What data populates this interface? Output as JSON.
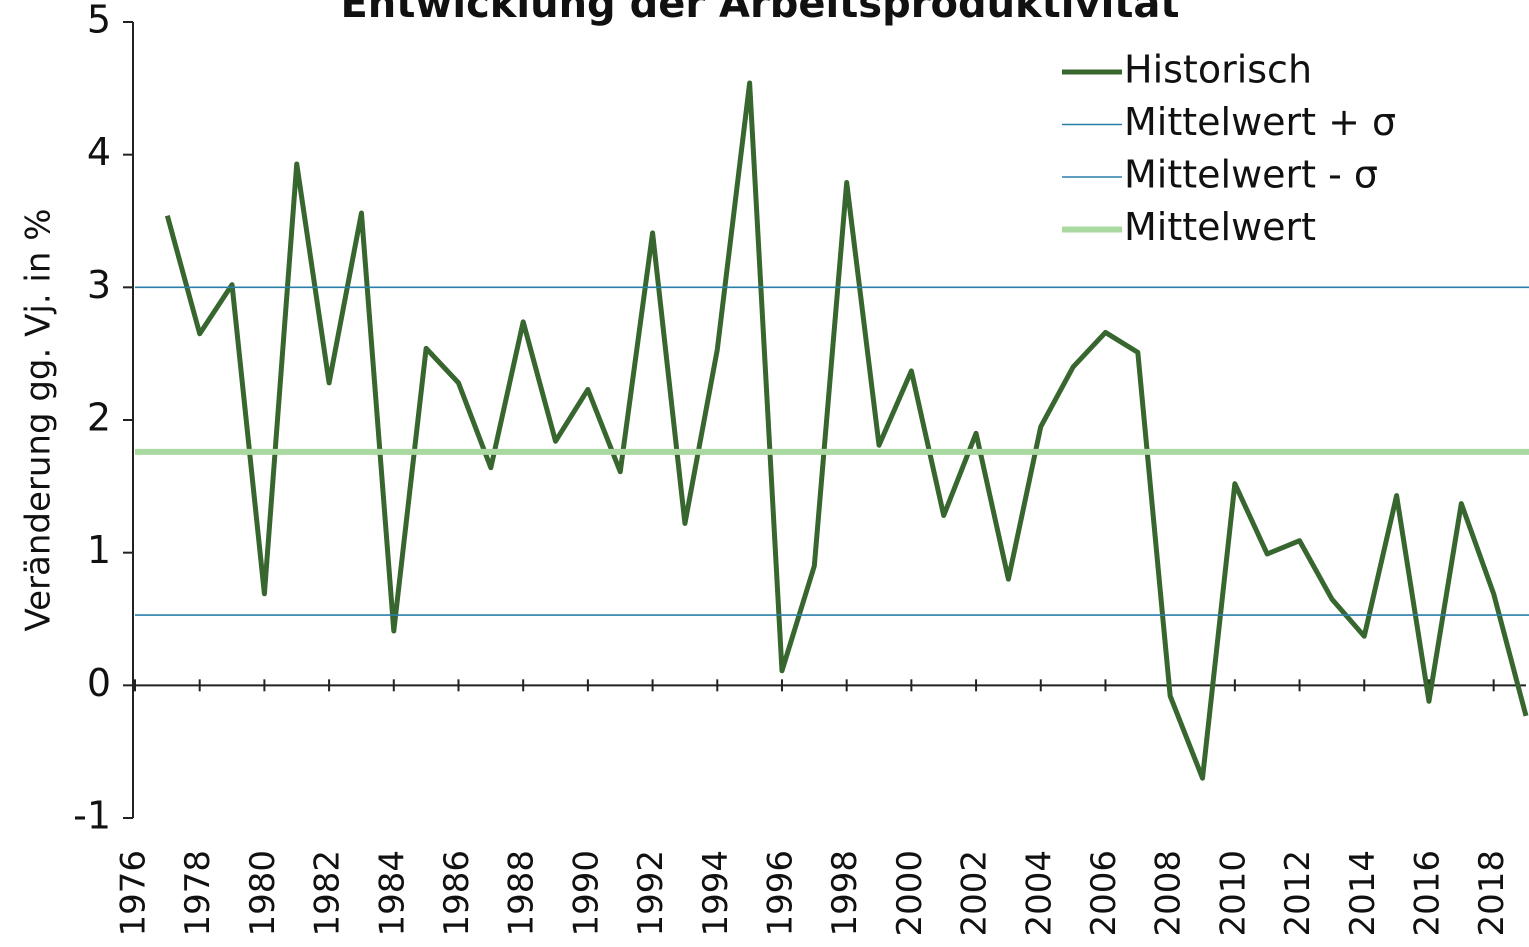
{
  "chart_data": {
    "type": "line",
    "title": "Entwicklung der Arbeitsproduktivität",
    "y_label": "Veränderung gg. Vj. in %",
    "x": [
      1977,
      1978,
      1979,
      1980,
      1981,
      1982,
      1983,
      1984,
      1985,
      1986,
      1987,
      1988,
      1989,
      1990,
      1991,
      1992,
      1993,
      1994,
      1995,
      1996,
      1997,
      1998,
      1999,
      2000,
      2001,
      2002,
      2003,
      2004,
      2005,
      2006,
      2007,
      2008,
      2009,
      2010,
      2011,
      2012,
      2013,
      2014,
      2015,
      2016,
      2017,
      2018,
      2019
    ],
    "series": [
      {
        "name": "Historisch",
        "color": "#38662f",
        "values": [
          3.54,
          2.65,
          3.02,
          0.69,
          3.93,
          2.28,
          3.56,
          0.41,
          2.54,
          2.28,
          1.64,
          2.74,
          1.84,
          2.23,
          1.61,
          3.41,
          1.22,
          2.53,
          4.54,
          0.11,
          0.9,
          3.79,
          1.81,
          2.37,
          1.28,
          1.9,
          0.8,
          1.95,
          2.4,
          2.66,
          2.51,
          -0.08,
          -0.7,
          1.52,
          0.99,
          1.09,
          0.65,
          0.37,
          1.43,
          -0.12,
          1.37,
          0.69,
          -0.23
        ]
      },
      {
        "name": "Mittelwert + σ",
        "color": "#2a7fa8",
        "value": 3.0
      },
      {
        "name": "Mittelwert - σ",
        "color": "#2a7fa8",
        "value": 0.53
      },
      {
        "name": "Mittelwert",
        "color": "#a9d8a0",
        "value": 1.76
      }
    ],
    "xlim": [
      1976,
      2019
    ],
    "xticks": [
      1976,
      1978,
      1980,
      1982,
      1984,
      1986,
      1988,
      1990,
      1992,
      1994,
      1996,
      1998,
      2000,
      2002,
      2004,
      2006,
      2008,
      2010,
      2012,
      2014,
      2016,
      2018
    ],
    "ylim": [
      -1,
      5
    ],
    "yticks": [
      -1,
      0,
      1,
      2,
      3,
      4,
      5
    ],
    "legend": "top-right"
  }
}
